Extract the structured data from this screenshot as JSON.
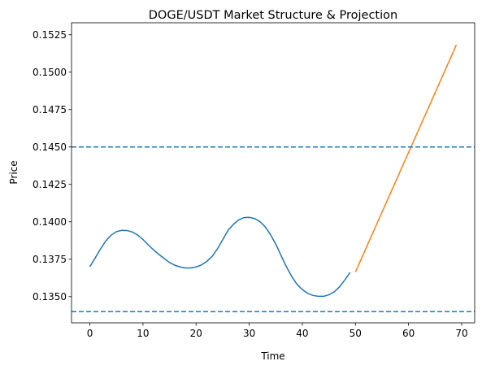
{
  "chart_data": {
    "type": "line",
    "title": "DOGE/USDT Market Structure & Projection",
    "xlabel": "Time",
    "ylabel": "Price",
    "xlim": [
      -3.45,
      72.45
    ],
    "ylim": [
      0.13325,
      0.1533
    ],
    "x_ticks": [
      0,
      10,
      20,
      30,
      40,
      50,
      60,
      70
    ],
    "y_ticks": [
      0.135,
      0.1375,
      0.14,
      0.1425,
      0.145,
      0.1475,
      0.15,
      0.1525
    ],
    "y_tick_labels": [
      "0.1350",
      "0.1375",
      "0.1400",
      "0.1425",
      "0.1450",
      "0.1475",
      "0.1500",
      "0.1525"
    ],
    "grid": false,
    "series": [
      {
        "color": "#1f77b4",
        "style": "solid",
        "x": [
          0,
          1,
          2,
          3,
          4,
          5,
          6,
          7,
          8,
          9,
          10,
          11,
          12,
          13,
          14,
          15,
          16,
          17,
          18,
          19,
          20,
          21,
          22,
          23,
          24,
          25,
          26,
          27,
          28,
          29,
          30,
          31,
          32,
          33,
          34,
          35,
          36,
          37,
          38,
          39,
          40,
          41,
          42,
          43,
          44,
          45,
          46,
          47,
          48,
          49
        ],
        "y": [
          0.137,
          0.13758,
          0.13818,
          0.13872,
          0.13911,
          0.13934,
          0.13943,
          0.13942,
          0.13932,
          0.13912,
          0.13882,
          0.13846,
          0.13812,
          0.13782,
          0.13755,
          0.13728,
          0.1371,
          0.13698,
          0.13692,
          0.13692,
          0.13698,
          0.13712,
          0.13735,
          0.13768,
          0.13818,
          0.1388,
          0.13942,
          0.13982,
          0.14012,
          0.14028,
          0.1403,
          0.14022,
          0.14002,
          0.13967,
          0.13915,
          0.13851,
          0.13774,
          0.137,
          0.13635,
          0.13582,
          0.13547,
          0.13522,
          0.13508,
          0.13502,
          0.13502,
          0.13512,
          0.13532,
          0.13565,
          0.13612,
          0.13662
        ]
      },
      {
        "color": "#ff7f0e",
        "style": "solid",
        "x": [
          50,
          69
        ],
        "y": [
          0.13665,
          0.15182
        ]
      },
      {
        "color": "#1f77b4",
        "style": "dashed",
        "type": "hline",
        "y": 0.145
      },
      {
        "color": "#1f77b4",
        "style": "dashed",
        "type": "hline",
        "y": 0.134
      }
    ]
  }
}
